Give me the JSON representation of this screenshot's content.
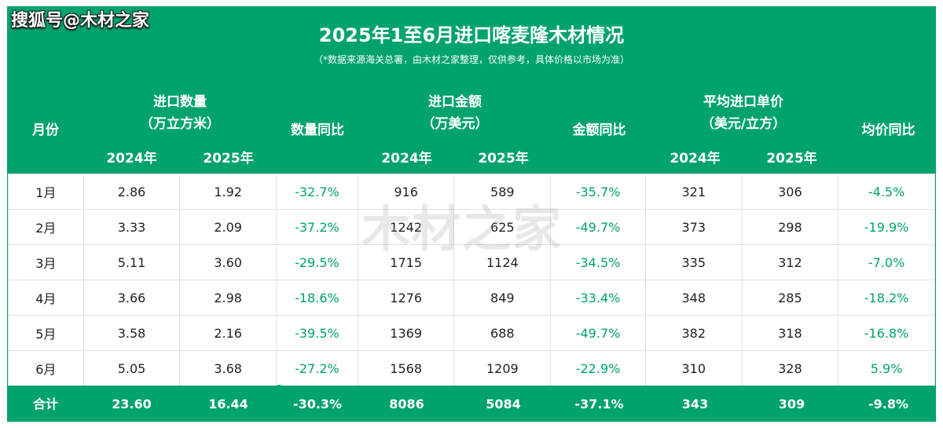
{
  "watermark_top": "搜狐号@木材之家",
  "watermark_center": "木材之家",
  "title": "2025年1至6月进口喀麦隆木材情况",
  "subtitle": "（*数据来源海关总署，由木材之家整理，仅供参考，具体价格以市场为准）",
  "headers": {
    "month": "月份",
    "qty_group_1": "进口数量",
    "qty_group_2": "（万立方米）",
    "qty_yoy": "数量同比",
    "amt_group_1": "进口金额",
    "amt_group_2": "（万美元）",
    "amt_yoy": "金额同比",
    "price_group_1": "平均进口单价",
    "price_group_2": "（美元/立方）",
    "price_yoy": "均价同比",
    "y2024_a": "2024年",
    "y2025_a": "2025年",
    "y2024_b": "2024年",
    "y2025_b": "2025年",
    "y2024_c": "2024年",
    "y2025_c": "2025年"
  },
  "rows": [
    {
      "month": "1月",
      "q24": "2.86",
      "q25": "1.92",
      "qy": "-32.7%",
      "a24": "916",
      "a25": "589",
      "ay": "-35.7%",
      "p24": "321",
      "p25": "306",
      "py": "-4.5%"
    },
    {
      "month": "2月",
      "q24": "3.33",
      "q25": "2.09",
      "qy": "-37.2%",
      "a24": "1242",
      "a25": "625",
      "ay": "-49.7%",
      "p24": "373",
      "p25": "298",
      "py": "-19.9%"
    },
    {
      "month": "3月",
      "q24": "5.11",
      "q25": "3.60",
      "qy": "-29.5%",
      "a24": "1715",
      "a25": "1124",
      "ay": "-34.5%",
      "p24": "335",
      "p25": "312",
      "py": "-7.0%"
    },
    {
      "month": "4月",
      "q24": "3.66",
      "q25": "2.98",
      "qy": "-18.6%",
      "a24": "1276",
      "a25": "849",
      "ay": "-33.4%",
      "p24": "348",
      "p25": "285",
      "py": "-18.2%"
    },
    {
      "month": "5月",
      "q24": "3.58",
      "q25": "2.16",
      "qy": "-39.5%",
      "a24": "1369",
      "a25": "688",
      "ay": "-49.7%",
      "p24": "382",
      "p25": "318",
      "py": "-16.8%"
    },
    {
      "month": "6月",
      "q24": "5.05",
      "q25": "3.68",
      "qy": "-27.2%",
      "a24": "1568",
      "a25": "1209",
      "ay": "-22.9%",
      "p24": "310",
      "p25": "328",
      "py": "5.9%"
    }
  ],
  "total": {
    "month": "合计",
    "q24": "23.60",
    "q25": "16.44",
    "qy": "-30.3%",
    "a24": "8086",
    "a25": "5084",
    "ay": "-37.1%",
    "p24": "343",
    "p25": "309",
    "py": "-9.8%"
  }
}
